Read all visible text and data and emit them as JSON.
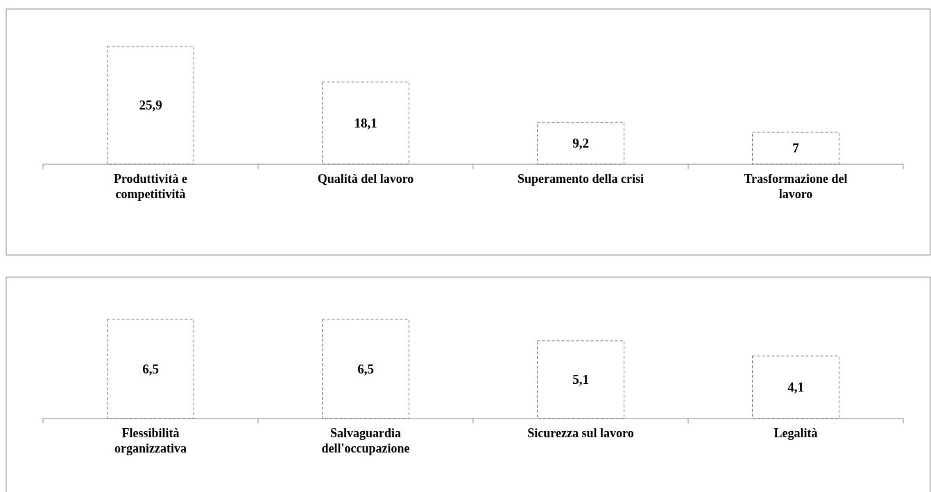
{
  "chart_data": [
    {
      "type": "bar",
      "categories": [
        "Produttività e competitività",
        "Qualità del lavoro",
        "Superamento della crisi",
        "Trasformazione del lavoro"
      ],
      "values": [
        25.9,
        18.1,
        9.2,
        7
      ],
      "value_labels": [
        "25,9",
        "18,1",
        "9,2",
        "7"
      ],
      "color": "#ffffff"
    },
    {
      "type": "bar",
      "categories": [
        "Flessibilità organizzativa",
        "Salvaguardia dell'occupazione",
        "Sicurezza sul lavoro",
        "Legalità"
      ],
      "values": [
        6.5,
        6.5,
        5.1,
        4.1
      ],
      "value_labels": [
        "6,5",
        "6,5",
        "5,1",
        "4,1"
      ],
      "color": "#ffffff"
    }
  ]
}
